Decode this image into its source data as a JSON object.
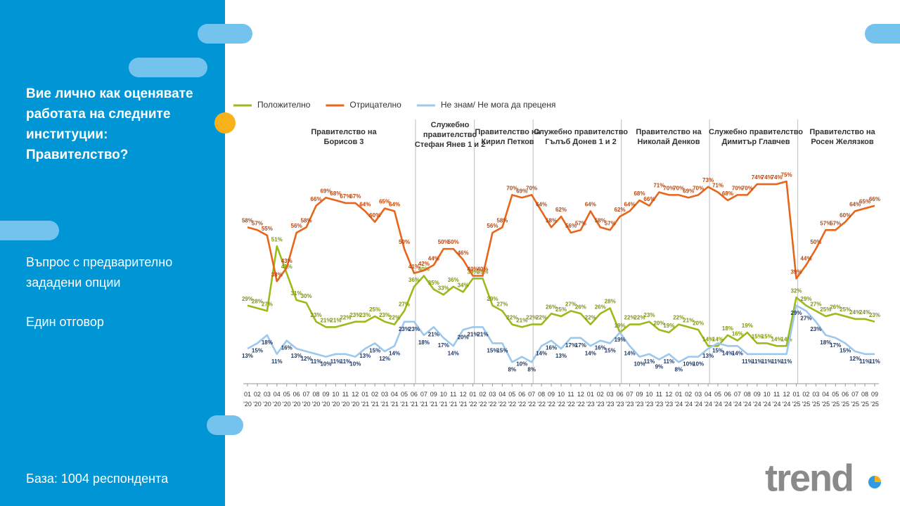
{
  "chart_data": {
    "type": "line",
    "title": "Вие лично как оценявате работата на следните институции: Правителство?",
    "categories": [
      "01 '20",
      "02 '20",
      "03 '20",
      "04 '20",
      "05 '20",
      "06 '20",
      "07 '20",
      "08 '20",
      "09 '20",
      "10 '20",
      "11 '20",
      "12 '20",
      "01 '21",
      "02 '21",
      "03 '21",
      "04 '21",
      "05 '21",
      "06 '21",
      "07 '21",
      "09 '21",
      "10 '21",
      "11 '21",
      "12 '21",
      "01 '22",
      "02 '22",
      "03 '22",
      "04 '22",
      "05 '22",
      "06 '22",
      "07 '22",
      "08 '22",
      "09 '22",
      "10 '22",
      "11 '22",
      "12 '22",
      "01 '23",
      "02 '23",
      "03 '23",
      "06 '23",
      "07 '23",
      "09 '23",
      "10 '23",
      "11 '23",
      "12 '23",
      "01 '24",
      "02 '24",
      "03 '24",
      "04 '24",
      "05 '24",
      "06 '24",
      "07 '24",
      "08 '24",
      "09 '24",
      "10 '24",
      "11 '24",
      "12 '24",
      "01 '25",
      "02 '25",
      "03 '25",
      "04 '25",
      "05 '25",
      "06 '25",
      "07 '25",
      "08 '25",
      "09 '25"
    ],
    "series": [
      {
        "name": "Положително",
        "color": "#9bbb1c",
        "label_color": "#7f9414",
        "values": [
          29,
          28,
          27,
          51,
          41,
          31,
          30,
          23,
          21,
          21,
          22,
          23,
          23,
          25,
          23,
          22,
          27,
          36,
          40,
          35,
          33,
          36,
          34,
          39,
          39,
          29,
          27,
          22,
          21,
          22,
          22,
          26,
          25,
          27,
          26,
          22,
          26,
          28,
          19,
          22,
          22,
          23,
          20,
          19,
          22,
          21,
          20,
          14,
          14,
          18,
          16,
          19,
          15,
          15,
          14,
          14,
          32,
          29,
          27,
          25,
          26,
          25,
          24,
          24,
          23
        ],
        "value_labels": [
          "29%",
          "28%",
          "27%",
          "51%",
          "41%",
          "31%",
          "30%",
          "23%",
          "21%",
          "21%",
          "22%",
          "23%",
          "23%",
          "25%",
          "23%",
          "22%",
          "27%",
          "36%",
          "40%",
          "35%",
          "33%",
          "36%",
          "34%",
          "39%",
          "39%",
          "29%",
          "27%",
          "22%",
          "21%",
          "22%",
          "22%",
          "26%",
          "25%",
          "27%",
          "26%",
          "22%",
          "26%",
          "28%",
          "19%",
          "22%",
          "22%",
          "23%",
          "20%",
          "19%",
          "22%",
          "21%",
          "20%",
          "14%",
          "14%",
          "18%",
          "16%",
          "19%",
          "15%",
          "15%",
          "14%",
          "14%",
          "32%",
          "29%",
          "27%",
          "25%",
          "26%",
          "25%",
          "24%",
          "24%",
          "23%"
        ]
      },
      {
        "name": "Отрицателно",
        "color": "#e8661c",
        "label_color": "#b9470f",
        "values": [
          58,
          57,
          55,
          38,
          43,
          56,
          58,
          66,
          69,
          68,
          67,
          67,
          64,
          60,
          65,
          64,
          50,
          41,
          42,
          44,
          50,
          50,
          46,
          40,
          40,
          56,
          58,
          70,
          69,
          70,
          64,
          58,
          62,
          56,
          57,
          64,
          58,
          57,
          62,
          64,
          68,
          66,
          71,
          70,
          70,
          69,
          70,
          73,
          71,
          68,
          70,
          70,
          74,
          74,
          74,
          75,
          39,
          44,
          50,
          57,
          57,
          60,
          64,
          65,
          66
        ],
        "value_labels": [
          "58%",
          "57%",
          "55%",
          "38%",
          "43%",
          "56%",
          "58%",
          "66%",
          "69%",
          "68%",
          "67%",
          "67%",
          "64%",
          "60%",
          "65%",
          "64%",
          "50%",
          "41%",
          "42%",
          "44%",
          "50%",
          "50%",
          "46%",
          "40%",
          "40%",
          "56%",
          "58%",
          "70%",
          "69%",
          "70%",
          "64%",
          "58%",
          "62%",
          "56%",
          "57%",
          "64%",
          "58%",
          "57%",
          "62%",
          "64%",
          "68%",
          "66%",
          "71%",
          "70%",
          "70%",
          "69%",
          "70%",
          "73%",
          "71%",
          "68%",
          "70%",
          "70%",
          "74%",
          "74%",
          "74%",
          "75%",
          "39%",
          "44%",
          "50%",
          "57%",
          "57%",
          "60%",
          "64%",
          "65%",
          "66%"
        ]
      },
      {
        "name": "Не знам/ Не мога да преценя",
        "color": "#9dc8ee",
        "label_color": "#1f3864",
        "values": [
          13,
          15,
          18,
          11,
          16,
          13,
          12,
          11,
          10,
          11,
          11,
          10,
          13,
          15,
          12,
          14,
          23,
          23,
          18,
          21,
          17,
          14,
          20,
          21,
          21,
          15,
          15,
          8,
          10,
          8,
          14,
          16,
          13,
          17,
          17,
          14,
          16,
          15,
          19,
          14,
          10,
          11,
          9,
          11,
          8,
          10,
          10,
          13,
          15,
          14,
          14,
          11,
          11,
          11,
          11,
          11,
          29,
          27,
          23,
          18,
          17,
          15,
          12,
          11,
          11
        ],
        "value_labels": [
          "13%",
          "15%",
          "18%",
          "11%",
          "16%",
          "13%",
          "12%",
          "11%",
          "10%",
          "11%",
          "11%",
          "10%",
          "13%",
          "15%",
          "12%",
          "14%",
          "23%",
          "23%",
          "18%",
          "21%",
          "17%",
          "14%",
          "20%",
          "21%",
          "21%",
          "15%",
          "15%",
          "8%",
          "10%",
          "8%",
          "14%",
          "16%",
          "13%",
          "17%",
          "17%",
          "14%",
          "16%",
          "15%",
          "19%",
          "14%",
          "10%",
          "11%",
          "9%",
          "11%",
          "8%",
          "10%",
          "10%",
          "13%",
          "15%",
          "14%",
          "14%",
          "11%",
          "11%",
          "11%",
          "11%",
          "11%",
          "29%",
          "27%",
          "23%",
          "18%",
          "17%",
          "15%",
          "12%",
          "11%",
          "11%"
        ]
      }
    ],
    "ylim": [
      0,
      80
    ],
    "annotations": [
      [
        "Правителство на",
        "Борисов 3"
      ],
      [
        "Служебно",
        "правителство",
        "Стефан Янев 1 и 2"
      ],
      [
        "Правителство на",
        "Кирил Петков"
      ],
      [
        "Служебно правителство",
        "Гълъб Донев 1 и 2"
      ],
      [
        "Правителство на",
        "Николай Денков"
      ],
      [
        "Служебно правителство",
        "Димитър Главчев"
      ],
      [
        "Правителство на",
        "Росен Желязков"
      ]
    ]
  },
  "panel": {
    "note": [
      "Въпрос с предварително",
      "зададени опции"
    ],
    "answer": "Един отговор",
    "base": "База:  1004 респондента"
  },
  "logo": "trend"
}
